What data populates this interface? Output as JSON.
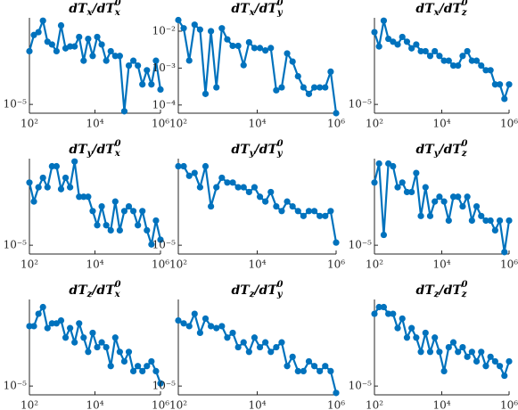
{
  "chart_data": [
    {
      "type": "line",
      "title": [
        "dT",
        "x",
        "/dT",
        "x",
        "0"
      ],
      "log_x": true,
      "log_y": true,
      "color": "#0072bd",
      "x": [
        100,
        137,
        189,
        259,
        356,
        489,
        672,
        924,
        1269,
        1743,
        2394,
        3290,
        4520,
        6209,
        8530,
        11719,
        16100,
        22118,
        30386,
        41745,
        57350,
        78788,
        108240,
        148700,
        204290,
        280650,
        385560,
        529680,
        727680,
        1000000
      ],
      "values": [
        3.86e-05,
        5.82e-05,
        6.26e-05,
        8.37e-05,
        4.91e-05,
        4.57e-05,
        3.86e-05,
        7.42e-05,
        4.15e-05,
        4.35e-05,
        4.35e-05,
        5.54e-05,
        3.03e-05,
        5.28e-05,
        3.42e-05,
        5.54e-05,
        4.57e-05,
        3.03e-05,
        3.86e-05,
        3.42e-05,
        3.42e-05,
        8.4e-06,
        2.68e-05,
        3.03e-05,
        2.68e-05,
        1.66e-05,
        2.38e-05,
        1.66e-05,
        3.03e-05,
        1.46e-05
      ],
      "xlim": [
        100,
        1000000
      ],
      "ylim": [
        8e-06,
        9e-05
      ],
      "xticks": [
        {
          "value": 100,
          "label": "10²"
        },
        {
          "value": 10000,
          "label": "10⁴"
        },
        {
          "value": 1000000,
          "label": "10⁶"
        }
      ],
      "yticks": [
        {
          "value": 1e-05,
          "label": "10⁻⁵"
        }
      ]
    },
    {
      "type": "line",
      "title": [
        "dT",
        "x",
        "/dT",
        "y",
        "0"
      ],
      "log_x": true,
      "log_y": true,
      "color": "#0072bd",
      "x": [
        100,
        137,
        189,
        259,
        356,
        489,
        672,
        924,
        1269,
        1743,
        2394,
        3290,
        4520,
        6209,
        8530,
        11719,
        16100,
        22118,
        30386,
        41745,
        57350,
        78788,
        108240,
        148700,
        204290,
        280650,
        385560,
        529680,
        727680,
        1000000
      ],
      "values": [
        0.02,
        0.012,
        0.0016,
        0.015,
        0.011,
        0.0002,
        0.01,
        0.0003,
        0.012,
        0.006,
        0.004,
        0.004,
        0.0012,
        0.005,
        0.0035,
        0.0035,
        0.003,
        0.0035,
        0.00025,
        0.0003,
        0.0025,
        0.0015,
        0.0006,
        0.0003,
        0.0002,
        0.0003,
        0.0003,
        0.0003,
        0.0008,
        6e-05
      ],
      "xlim": [
        100,
        1000000
      ],
      "ylim": [
        6e-05,
        0.023
      ],
      "xticks": [
        {
          "value": 100,
          "label": "10²"
        },
        {
          "value": 10000,
          "label": "10⁴"
        },
        {
          "value": 1000000,
          "label": "10⁶"
        }
      ],
      "yticks": [
        {
          "value": 0.0001,
          "label": "10⁻⁴"
        },
        {
          "value": 0.001,
          "label": "10⁻³"
        },
        {
          "value": 0.01,
          "label": "10⁻²"
        }
      ]
    },
    {
      "type": "line",
      "title": [
        "dT",
        "x",
        "/dT",
        "z",
        "0"
      ],
      "log_x": true,
      "log_y": true,
      "color": "#0072bd",
      "x": [
        100,
        137,
        189,
        259,
        356,
        489,
        672,
        924,
        1269,
        1743,
        2394,
        3290,
        4520,
        6209,
        8530,
        11719,
        16100,
        22118,
        30386,
        41745,
        57350,
        78788,
        108240,
        148700,
        204290,
        280650,
        385560,
        529680,
        727680,
        1000000
      ],
      "values": [
        6.26e-05,
        4.35e-05,
        8.37e-05,
        5.28e-05,
        4.91e-05,
        4.57e-05,
        5.54e-05,
        4.91e-05,
        4.15e-05,
        4.57e-05,
        3.86e-05,
        3.86e-05,
        3.42e-05,
        3.86e-05,
        3.42e-05,
        3.03e-05,
        3.03e-05,
        2.68e-05,
        2.68e-05,
        3.42e-05,
        3.86e-05,
        3.03e-05,
        3.03e-05,
        2.68e-05,
        2.38e-05,
        2.38e-05,
        1.66e-05,
        1.66e-05,
        1.15e-05,
        1.66e-05
      ],
      "xlim": [
        100,
        1000000
      ],
      "ylim": [
        8e-06,
        9e-05
      ],
      "xticks": [
        {
          "value": 100,
          "label": "10²"
        },
        {
          "value": 10000,
          "label": "10⁴"
        },
        {
          "value": 1000000,
          "label": "10⁶"
        }
      ],
      "yticks": [
        {
          "value": 1e-05,
          "label": "10⁻⁵"
        }
      ]
    },
    {
      "type": "line",
      "title": [
        "dT",
        "y",
        "/dT",
        "x",
        "0"
      ],
      "log_x": true,
      "log_y": true,
      "color": "#0072bd",
      "x": [
        100,
        137,
        189,
        259,
        356,
        489,
        672,
        924,
        1269,
        1743,
        2394,
        3290,
        4520,
        6209,
        8530,
        11719,
        16100,
        22118,
        30386,
        41745,
        57350,
        78788,
        108240,
        148700,
        204290,
        280650,
        385560,
        529680,
        727680,
        1000000
      ],
      "values": [
        4.91e-05,
        3.03e-05,
        4.35e-05,
        5.54e-05,
        4.35e-05,
        7.42e-05,
        7.42e-05,
        4.15e-05,
        5.54e-05,
        4.35e-05,
        8.37e-05,
        3.42e-05,
        3.42e-05,
        3.42e-05,
        2.38e-05,
        1.66e-05,
        2.68e-05,
        1.66e-05,
        1.46e-05,
        3.03e-05,
        1.46e-05,
        2.38e-05,
        2.68e-05,
        2.38e-05,
        1.66e-05,
        2.38e-05,
        1.46e-05,
        1.02e-05,
        1.87e-05,
        1.15e-05
      ],
      "xlim": [
        100,
        1000000
      ],
      "ylim": [
        8e-06,
        9e-05
      ],
      "xticks": [
        {
          "value": 100,
          "label": "10²"
        },
        {
          "value": 10000,
          "label": "10⁴"
        },
        {
          "value": 1000000,
          "label": "10⁶"
        }
      ],
      "yticks": [
        {
          "value": 1e-05,
          "label": "10⁻⁵"
        }
      ]
    },
    {
      "type": "line",
      "title": [
        "dT",
        "y",
        "/dT",
        "y",
        "0"
      ],
      "log_x": true,
      "log_y": true,
      "color": "#0072bd",
      "x": [
        100,
        137,
        189,
        259,
        356,
        489,
        672,
        924,
        1269,
        1743,
        2394,
        3290,
        4520,
        6209,
        8530,
        11719,
        16100,
        22118,
        30386,
        41745,
        57350,
        78788,
        108240,
        148700,
        204290,
        280650,
        385560,
        529680,
        727680,
        1000000
      ],
      "values": [
        7.42e-05,
        7.42e-05,
        5.82e-05,
        6.26e-05,
        4.35e-05,
        7.42e-05,
        2.68e-05,
        4.35e-05,
        5.54e-05,
        4.91e-05,
        4.91e-05,
        4.35e-05,
        4.35e-05,
        3.86e-05,
        4.35e-05,
        3.42e-05,
        3.03e-05,
        3.86e-05,
        2.68e-05,
        2.38e-05,
        3.03e-05,
        2.68e-05,
        2.38e-05,
        2.1e-05,
        2.38e-05,
        2.38e-05,
        2.1e-05,
        2.1e-05,
        2.38e-05,
        1.07e-05
      ],
      "xlim": [
        100,
        1000000
      ],
      "ylim": [
        8e-06,
        9e-05
      ],
      "xticks": [
        {
          "value": 100,
          "label": "10²"
        },
        {
          "value": 10000,
          "label": "10⁴"
        },
        {
          "value": 1000000,
          "label": "10⁶"
        }
      ],
      "yticks": [
        {
          "value": 1e-05,
          "label": "10⁻⁵"
        }
      ]
    },
    {
      "type": "line",
      "title": [
        "dT",
        "y",
        "/dT",
        "z",
        "0"
      ],
      "log_x": true,
      "log_y": true,
      "color": "#0072bd",
      "x": [
        100,
        137,
        189,
        259,
        356,
        489,
        672,
        924,
        1269,
        1743,
        2394,
        3290,
        4520,
        6209,
        8530,
        11719,
        16100,
        22118,
        30386,
        41745,
        57350,
        78788,
        108240,
        148700,
        204290,
        280650,
        385560,
        529680,
        727680,
        1000000
      ],
      "values": [
        4.91e-05,
        7.95e-05,
        1.3e-05,
        7.95e-05,
        7.42e-05,
        4.35e-05,
        4.91e-05,
        3.86e-05,
        3.86e-05,
        6.26e-05,
        2.1e-05,
        4.35e-05,
        2.1e-05,
        3.03e-05,
        3.42e-05,
        3.03e-05,
        1.87e-05,
        3.42e-05,
        3.42e-05,
        2.68e-05,
        3.42e-05,
        1.87e-05,
        2.68e-05,
        2.1e-05,
        1.87e-05,
        1.87e-05,
        1.46e-05,
        1.87e-05,
        8.4e-06,
        1.87e-05
      ],
      "xlim": [
        100,
        1000000
      ],
      "ylim": [
        8e-06,
        9e-05
      ],
      "xticks": [
        {
          "value": 100,
          "label": "10²"
        },
        {
          "value": 10000,
          "label": "10⁴"
        },
        {
          "value": 1000000,
          "label": "10⁶"
        }
      ],
      "yticks": [
        {
          "value": 1e-05,
          "label": "10⁻⁵"
        }
      ]
    },
    {
      "type": "line",
      "title": [
        "dT",
        "z",
        "/dT",
        "x",
        "0"
      ],
      "log_x": true,
      "log_y": true,
      "color": "#0072bd",
      "x": [
        100,
        137,
        189,
        259,
        356,
        489,
        672,
        924,
        1269,
        1743,
        2394,
        3290,
        4520,
        6209,
        8530,
        11719,
        16100,
        22118,
        30386,
        41745,
        57350,
        78788,
        108240,
        148700,
        204290,
        280650,
        385560,
        529680,
        727680,
        1000000
      ],
      "values": [
        4.57e-05,
        4.57e-05,
        6.26e-05,
        7.42e-05,
        4.35e-05,
        4.91e-05,
        4.91e-05,
        5.28e-05,
        3.42e-05,
        4.35e-05,
        3.03e-05,
        4.91e-05,
        3.42e-05,
        2.38e-05,
        3.86e-05,
        2.68e-05,
        3.03e-05,
        2.68e-05,
        1.66e-05,
        3.42e-05,
        2.38e-05,
        1.87e-05,
        2.38e-05,
        1.46e-05,
        1.66e-05,
        1.46e-05,
        1.66e-05,
        1.87e-05,
        1.46e-05,
        1.07e-05
      ],
      "xlim": [
        100,
        1000000
      ],
      "ylim": [
        8e-06,
        9e-05
      ],
      "xticks": [
        {
          "value": 100,
          "label": "10²"
        },
        {
          "value": 10000,
          "label": "10⁴"
        },
        {
          "value": 1000000,
          "label": "10⁶"
        }
      ],
      "yticks": [
        {
          "value": 1e-05,
          "label": "10⁻⁵"
        }
      ]
    },
    {
      "type": "line",
      "title": [
        "dT",
        "z",
        "/dT",
        "y",
        "0"
      ],
      "log_x": true,
      "log_y": true,
      "color": "#0072bd",
      "x": [
        100,
        137,
        189,
        259,
        356,
        489,
        672,
        924,
        1269,
        1743,
        2394,
        3290,
        4520,
        6209,
        8530,
        11719,
        16100,
        22118,
        30386,
        41745,
        57350,
        78788,
        108240,
        148700,
        204290,
        280650,
        385560,
        529680,
        727680,
        1000000
      ],
      "values": [
        5.28e-05,
        4.91e-05,
        4.57e-05,
        6.26e-05,
        3.86e-05,
        5.54e-05,
        4.57e-05,
        4.35e-05,
        4.57e-05,
        3.42e-05,
        3.86e-05,
        2.68e-05,
        3.03e-05,
        2.38e-05,
        3.42e-05,
        2.68e-05,
        3.03e-05,
        2.38e-05,
        2.68e-05,
        3.03e-05,
        1.66e-05,
        2.1e-05,
        1.46e-05,
        1.46e-05,
        1.87e-05,
        1.66e-05,
        1.46e-05,
        1.66e-05,
        1.46e-05,
        8.4e-06
      ],
      "xlim": [
        100,
        1000000
      ],
      "ylim": [
        8e-06,
        9e-05
      ],
      "xticks": [
        {
          "value": 100,
          "label": "10²"
        },
        {
          "value": 10000,
          "label": "10⁴"
        },
        {
          "value": 1000000,
          "label": "10⁶"
        }
      ],
      "yticks": [
        {
          "value": 1e-05,
          "label": "10⁻⁵"
        }
      ]
    },
    {
      "type": "line",
      "title": [
        "dT",
        "z",
        "/dT",
        "z",
        "0"
      ],
      "log_x": true,
      "log_y": true,
      "color": "#0072bd",
      "x": [
        100,
        137,
        189,
        259,
        356,
        489,
        672,
        924,
        1269,
        1743,
        2394,
        3290,
        4520,
        6209,
        8530,
        11719,
        16100,
        22118,
        30386,
        41745,
        57350,
        78788,
        108240,
        148700,
        204290,
        280650,
        385560,
        529680,
        727680,
        1000000
      ],
      "values": [
        6.26e-05,
        7.42e-05,
        7.42e-05,
        6.26e-05,
        6.26e-05,
        4.35e-05,
        5.54e-05,
        3.42e-05,
        4.35e-05,
        3.42e-05,
        2.38e-05,
        3.86e-05,
        2.38e-05,
        3.42e-05,
        2.38e-05,
        1.46e-05,
        2.68e-05,
        3.03e-05,
        2.38e-05,
        2.68e-05,
        2.1e-05,
        2.38e-05,
        1.87e-05,
        2.38e-05,
        1.66e-05,
        2.1e-05,
        1.87e-05,
        1.66e-05,
        1.3e-05,
        1.87e-05
      ],
      "xlim": [
        100,
        1000000
      ],
      "ylim": [
        8e-06,
        9e-05
      ],
      "xticks": [
        {
          "value": 100,
          "label": "10²"
        },
        {
          "value": 10000,
          "label": "10⁴"
        },
        {
          "value": 1000000,
          "label": "10⁶"
        }
      ],
      "yticks": [
        {
          "value": 1e-05,
          "label": "10⁻⁵"
        }
      ]
    }
  ]
}
